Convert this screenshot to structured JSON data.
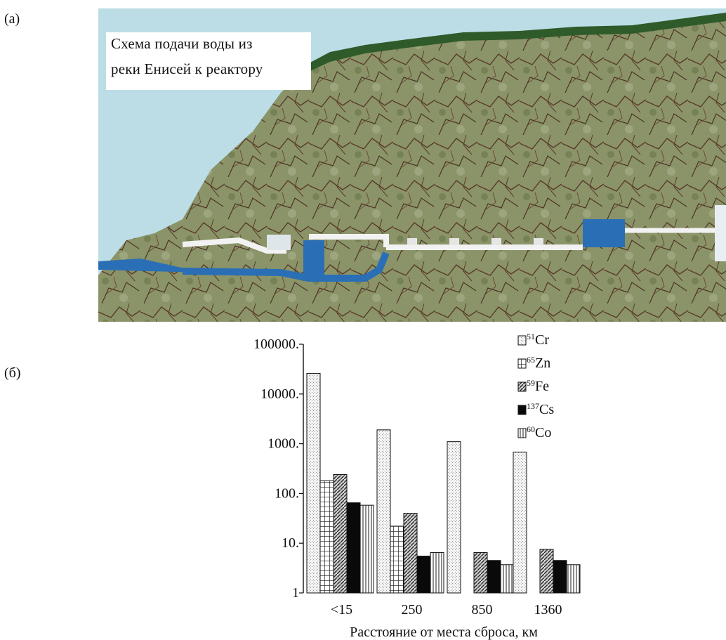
{
  "panels": {
    "a": "(а)",
    "b": "(б)"
  },
  "illustration": {
    "caption_line1": "Схема подачи воды из",
    "caption_line2": "реки Енисей к реактору"
  },
  "colors": {
    "sky": "#bcdde6",
    "rock": "#7e8a5c",
    "vegetation": "#2f5a2a",
    "water": "#2a6fb5",
    "pipe": "#f2f2f2"
  },
  "chart_data": {
    "type": "bar",
    "y_scale": "log",
    "ylim": [
      1,
      100000
    ],
    "ytick_labels": [
      "1",
      "10.",
      "100.",
      "1000.",
      "10000.",
      "100000."
    ],
    "yticks": [
      1,
      10,
      100,
      1000,
      10000,
      100000
    ],
    "xlabel": "Расстояние от места сброса, км",
    "categories": [
      "<15",
      "250",
      "850",
      "1360"
    ],
    "legend_position": "top-right",
    "series": [
      {
        "name": "Cr",
        "sup": "51",
        "pattern": "dots",
        "values": [
          26000,
          1900,
          1100,
          680
        ]
      },
      {
        "name": "Zn",
        "sup": "65",
        "pattern": "grid",
        "values": [
          180,
          22,
          null,
          null
        ]
      },
      {
        "name": "Fe",
        "sup": "59",
        "pattern": "diag",
        "values": [
          240,
          40,
          6.5,
          7.5
        ]
      },
      {
        "name": "Cs",
        "sup": "137",
        "pattern": "solid",
        "values": [
          65,
          5.5,
          4.5,
          4.5
        ]
      },
      {
        "name": "Co",
        "sup": "60",
        "pattern": "vlines",
        "values": [
          58,
          6.5,
          3.7,
          3.7
        ]
      }
    ]
  }
}
